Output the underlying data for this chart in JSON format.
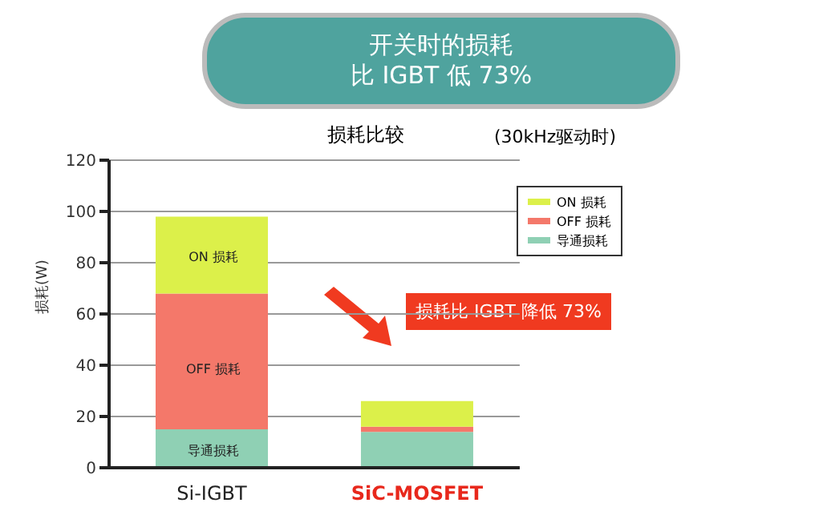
{
  "chart_data": {
    "type": "bar",
    "stacked": true,
    "title": "开关时的损耗",
    "subtitle": "比 IGBT 低 73%",
    "ylabel": "损耗(W)",
    "categories": [
      "Si-IGBT",
      "SiC-MOSFET"
    ],
    "series": [
      {
        "name": "导通损耗",
        "color": "#8fd0b4",
        "values": [
          15,
          14
        ]
      },
      {
        "name": "OFF 损耗",
        "color": "#f4786a",
        "values": [
          53,
          2
        ]
      },
      {
        "name": "ON 损耗",
        "color": "#dcf04a",
        "values": [
          30,
          10
        ]
      }
    ],
    "ylim": [
      0,
      120
    ],
    "yticks": [
      0,
      20,
      40,
      60,
      80,
      100,
      120
    ],
    "grid": "y",
    "legend": "top right",
    "annotations": [
      "损耗比较",
      "(30kHz驱动时)",
      "损耗比 IGBT 降低 73%",
      "ON 损耗",
      "OFF 损耗",
      "导通损耗"
    ]
  }
}
